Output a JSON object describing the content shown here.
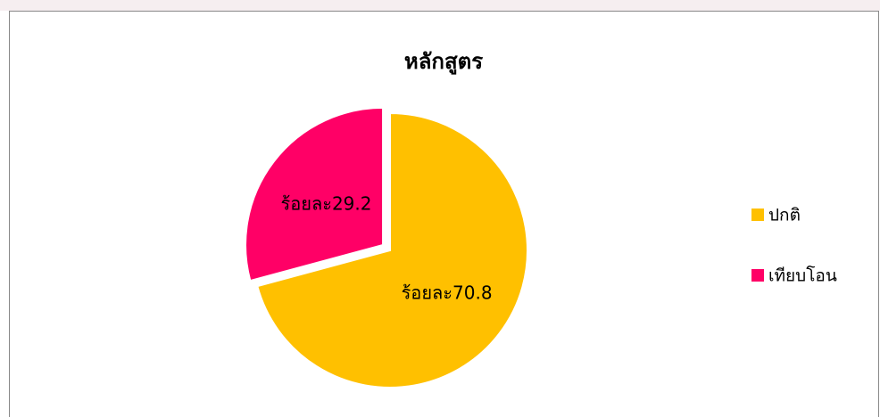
{
  "chart_data": {
    "type": "pie",
    "title": "หลักสูตร",
    "categories": [
      "ปกติ",
      "เทียบโอน"
    ],
    "values": [
      70.8,
      29.2
    ],
    "value_labels": [
      "ร้อยละ70.8",
      "ร้อยละ29.2"
    ],
    "colors": [
      "#FFC000",
      "#FF0066"
    ],
    "exploded": [
      false,
      true
    ],
    "legend": "right"
  }
}
